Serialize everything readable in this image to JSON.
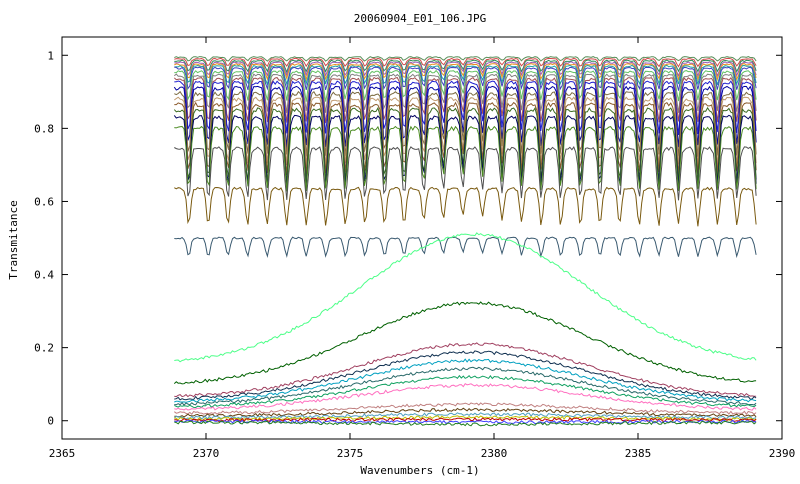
{
  "chart_data": {
    "type": "line",
    "title": "20060904_E01_106.JPG",
    "xlabel": "Wavenumbers (cm-1)",
    "ylabel": "Transmitance",
    "xlim": [
      2365,
      2390
    ],
    "ylim": [
      -0.05,
      1.05
    ],
    "x_ticks": [
      "2365",
      "2370",
      "2375",
      "2380",
      "2385",
      "2390"
    ],
    "y_ticks": [
      "0",
      "0.2",
      "0.4",
      "0.6",
      "0.8",
      "1"
    ],
    "grid": false,
    "legend": "none",
    "x_range": [
      2368.9,
      2389.1
    ],
    "series_style": [
      {
        "base": 0.995,
        "amp": 0.01,
        "color": "#5a8f5a"
      },
      {
        "base": 0.99,
        "amp": 0.02,
        "color": "#d04848"
      },
      {
        "base": 0.985,
        "amp": 0.03,
        "color": "#2e8b57"
      },
      {
        "base": 0.98,
        "amp": 0.035,
        "color": "#9b59b6"
      },
      {
        "base": 0.975,
        "amp": 0.04,
        "color": "#e89020"
      },
      {
        "base": 0.97,
        "amp": 0.05,
        "color": "#20a0a0"
      },
      {
        "base": 0.965,
        "amp": 0.06,
        "color": "#4040c0"
      },
      {
        "base": 0.955,
        "amp": 0.08,
        "color": "#60c060"
      },
      {
        "base": 0.945,
        "amp": 0.1,
        "color": "#808080"
      },
      {
        "base": 0.935,
        "amp": 0.12,
        "color": "#a05050"
      },
      {
        "base": 0.925,
        "amp": 0.14,
        "color": "#1f1fd0"
      },
      {
        "base": 0.91,
        "amp": 0.16,
        "color": "#0000a0"
      },
      {
        "base": 0.895,
        "amp": 0.17,
        "color": "#7a6a40"
      },
      {
        "base": 0.88,
        "amp": 0.18,
        "color": "#c09a70"
      },
      {
        "base": 0.865,
        "amp": 0.19,
        "color": "#8b5a2b"
      },
      {
        "base": 0.85,
        "amp": 0.2,
        "color": "#3a6a20"
      },
      {
        "base": 0.83,
        "amp": 0.19,
        "color": "#000060"
      },
      {
        "base": 0.8,
        "amp": 0.17,
        "color": "#4a8a20"
      },
      {
        "base": 0.745,
        "amp": 0.14,
        "color": "#505050"
      },
      {
        "base": 0.635,
        "amp": 0.1,
        "color": "#7a5a10"
      },
      {
        "base": 0.5,
        "amp": 0.05,
        "color": "#3a5a70"
      },
      {
        "base": 0.34,
        "amp": 0.0,
        "color": "#4dff88"
      },
      {
        "base": 0.215,
        "amp": 0.0,
        "color": "#006000"
      },
      {
        "base": 0.14,
        "amp": 0.0,
        "color": "#a04060"
      },
      {
        "base": 0.125,
        "amp": 0.0,
        "color": "#103050"
      },
      {
        "base": 0.11,
        "amp": 0.0,
        "color": "#00a0c0"
      },
      {
        "base": 0.095,
        "amp": 0.0,
        "color": "#2a6a6a"
      },
      {
        "base": 0.08,
        "amp": 0.0,
        "color": "#10a060"
      },
      {
        "base": 0.065,
        "amp": 0.0,
        "color": "#ff70c0"
      },
      {
        "base": 0.045,
        "amp": 0.0,
        "color": "#c08080"
      },
      {
        "base": 0.03,
        "amp": 0.0,
        "color": "#604010"
      },
      {
        "base": 0.018,
        "amp": 0.0,
        "color": "#50a0c0"
      },
      {
        "base": 0.01,
        "amp": 0.0,
        "color": "#c0c000"
      },
      {
        "base": 0.004,
        "amp": 0.0,
        "color": "#c00000"
      },
      {
        "base": -0.004,
        "amp": 0.0,
        "color": "#4040ff"
      },
      {
        "base": -0.01,
        "amp": 0.0,
        "color": "#208020"
      }
    ]
  }
}
